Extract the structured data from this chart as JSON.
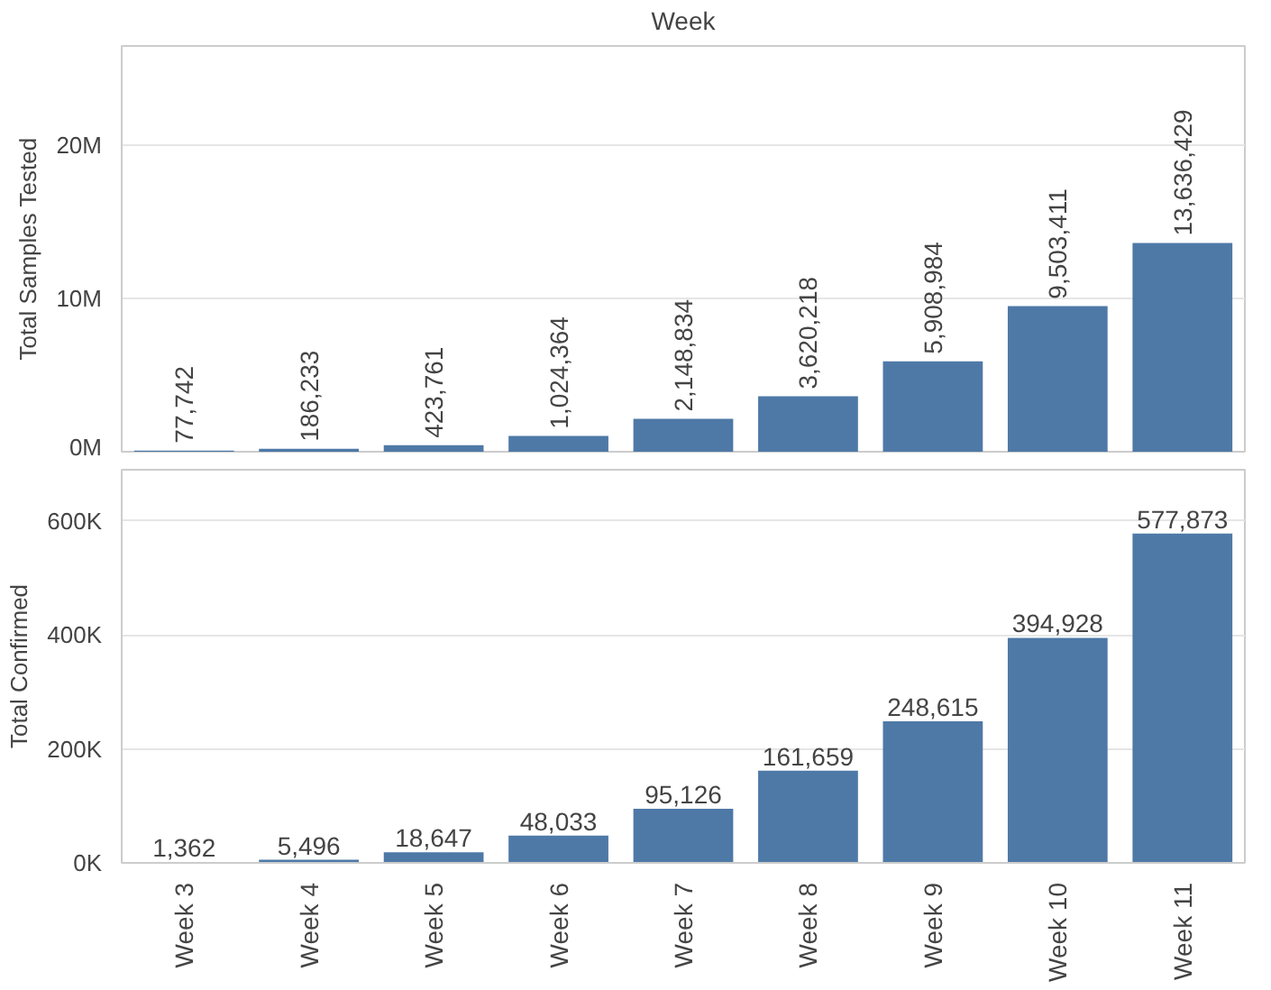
{
  "chart_data": [
    {
      "type": "bar",
      "xlabel": "Week",
      "ylabel": "Total Samples Tested",
      "categories": [
        null,
        null,
        null,
        null,
        null,
        null,
        null,
        null,
        null
      ],
      "values": [
        77742,
        186233,
        423761,
        1024364,
        2148834,
        3620218,
        5908984,
        9503411,
        13636429
      ],
      "value_labels": [
        "77,742",
        "186,233",
        "423,761",
        "1,024,364",
        "2,148,834",
        "3,620,218",
        "5,908,984",
        "9,503,411",
        "13,636,429"
      ],
      "color": "#4e79a7",
      "ylim": [
        0,
        26500000
      ],
      "yticks": [
        {
          "value": 0,
          "label": "0M"
        },
        {
          "value": 10000000,
          "label": "10M"
        },
        {
          "value": 20000000,
          "label": "20M"
        }
      ],
      "grid": "y",
      "tick_labels": "y"
    },
    {
      "type": "bar",
      "ylabel": "Total Confirmed",
      "categories": [
        "Week 3",
        "Week 4",
        "Week 5",
        "Week 6",
        "Week 7",
        "Week 8",
        "Week 9",
        "Week 10",
        "Week 11"
      ],
      "values": [
        1362,
        5496,
        18647,
        48033,
        95126,
        161659,
        248615,
        394928,
        577873
      ],
      "value_labels": [
        "1,362",
        "5,496",
        "18,647",
        "48,033",
        "95,126",
        "161,659",
        "248,615",
        "394,928",
        "577,873"
      ],
      "color": "#4e79a7",
      "ylim": [
        0,
        690000
      ],
      "yticks": [
        {
          "value": 0,
          "label": "0K"
        },
        {
          "value": 200000,
          "label": "200K"
        },
        {
          "value": 400000,
          "label": "400K"
        },
        {
          "value": 600000,
          "label": "600K"
        }
      ],
      "grid": "y"
    }
  ]
}
